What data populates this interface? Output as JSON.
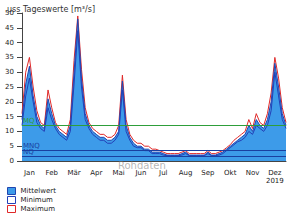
{
  "chart_data": {
    "type": "area",
    "title": "uss Tageswerte [m³/s]",
    "categories": [
      null,
      null,
      "Jan",
      null,
      null,
      null,
      null,
      null,
      "Feb",
      null,
      null,
      null,
      null,
      null,
      "Mär",
      null,
      null,
      null,
      null,
      null,
      "Apr",
      null,
      null,
      null,
      null,
      null,
      "Mai",
      null,
      null,
      null,
      null,
      null,
      "Jun",
      null,
      null,
      null,
      null,
      null,
      "Jul",
      null,
      null,
      null,
      null,
      null,
      "Aug",
      null,
      null,
      null,
      null,
      null,
      "Sep",
      null,
      null,
      null,
      null,
      null,
      "Okt",
      null,
      null,
      null,
      null,
      null,
      "Nov",
      null,
      null,
      null,
      null,
      null,
      "Dez\n2019",
      null,
      null,
      null
    ],
    "series": [
      {
        "name": "Mittelwert",
        "color": "#3d9be9",
        "type": "area",
        "values": [
          14,
          26,
          32,
          22,
          15,
          12,
          11,
          21,
          16,
          12,
          10,
          9,
          8,
          12,
          30,
          48,
          28,
          16,
          12,
          10,
          9,
          8,
          8,
          7,
          7,
          8,
          10,
          27,
          12,
          8,
          6,
          5,
          5,
          4,
          4,
          3,
          3,
          3,
          2.5,
          2,
          2,
          2,
          2,
          2.5,
          3,
          2,
          2,
          2,
          2,
          2,
          3,
          2,
          2,
          2.5,
          3,
          4,
          5,
          6,
          7,
          8,
          9,
          12,
          10,
          14,
          12,
          11,
          14,
          20,
          33,
          25,
          16,
          12
        ]
      },
      {
        "name": "Minimum",
        "color": "#2340b8",
        "type": "line",
        "values": [
          12,
          22,
          28,
          20,
          13,
          11,
          10,
          18,
          14,
          11,
          9,
          8,
          7,
          10,
          26,
          44,
          25,
          14,
          11,
          9,
          8,
          7,
          7,
          6,
          6,
          7,
          9,
          24,
          10,
          7,
          5,
          4.5,
          4.5,
          3.5,
          3.5,
          2.5,
          2.5,
          2.5,
          2,
          1.8,
          1.8,
          1.8,
          1.8,
          2,
          2.5,
          1.8,
          1.8,
          1.8,
          1.8,
          1.8,
          2.5,
          1.8,
          1.8,
          2,
          2.5,
          3.5,
          4.5,
          5.5,
          6.5,
          7,
          8,
          10,
          9,
          12,
          11,
          10,
          12,
          17,
          30,
          22,
          14,
          11
        ]
      },
      {
        "name": "Maximum",
        "color": "#e02828",
        "type": "line",
        "values": [
          16,
          30,
          35,
          25,
          17,
          13,
          12,
          24,
          18,
          13,
          11,
          10,
          9,
          14,
          34,
          49,
          31,
          18,
          13,
          11,
          10,
          9,
          9,
          8,
          8,
          9,
          12,
          29,
          14,
          9,
          7,
          6,
          6,
          5,
          5,
          4,
          4,
          3.5,
          3,
          2.5,
          2.5,
          2.5,
          2.5,
          3,
          3.5,
          2.5,
          2.5,
          2.5,
          2.5,
          2.5,
          3.5,
          2.5,
          2.5,
          3,
          3.5,
          4.5,
          5.5,
          7,
          8,
          9,
          10,
          14,
          11,
          16,
          13,
          12,
          16,
          23,
          35,
          28,
          18,
          13
        ]
      }
    ],
    "reference_lines": [
      {
        "name": "MQ",
        "value": 12,
        "color": "#2e9e3a"
      },
      {
        "name": "MNQ",
        "value": 3.5,
        "color": "#1a3fa0"
      },
      {
        "name": "NQ",
        "value": 1.5,
        "color": "#1a3fa0"
      }
    ],
    "annotations": [
      {
        "text": "Rohdaten"
      }
    ],
    "ylim": [
      0,
      50
    ],
    "yticks": [
      0,
      5,
      10,
      15,
      20,
      25,
      30,
      35,
      40,
      45,
      50
    ],
    "grid": false,
    "legend": "bottom-left"
  }
}
